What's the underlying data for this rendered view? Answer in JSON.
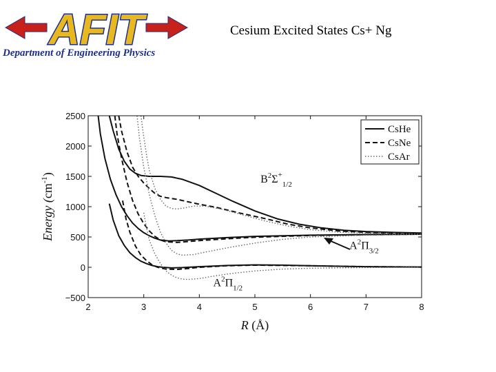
{
  "header": {
    "logo_text": "AFIT",
    "department": "Department of Engineering Physics",
    "title": "Cesium Excited States Cs+ Ng"
  },
  "colors": {
    "logo_fill": "#e8b820",
    "logo_outline": "#1d2f86",
    "logo_arrow": "#c8201a",
    "department_text": "#1d2f86"
  },
  "chart_data": {
    "type": "line",
    "title": "",
    "xlabel": "R (Å)",
    "ylabel": "Energy (cm-1)",
    "xlim": [
      2,
      8
    ],
    "ylim": [
      -500,
      2500
    ],
    "xticks": [
      "2",
      "3",
      "4",
      "5",
      "6",
      "7",
      "8"
    ],
    "yticks": [
      "−500",
      "0",
      "500",
      "1000",
      "1500",
      "2000",
      "2500"
    ],
    "grid": false,
    "legend_position": "top-right",
    "legend": [
      {
        "label": "CsHe",
        "style": "solid"
      },
      {
        "label": "CsNe",
        "style": "dashed"
      },
      {
        "label": "CsAr",
        "style": "dotted"
      }
    ],
    "annotations": [
      {
        "base": "B",
        "sup": "2",
        "sym": "Σ",
        "sup2": "+",
        "sub": "1/2",
        "at": [
          5.1,
          1400
        ]
      },
      {
        "base": "A",
        "sup": "2",
        "sym": "Π",
        "sup2": "",
        "sub": "3/2",
        "at": [
          6.7,
          300
        ]
      },
      {
        "base": "A",
        "sup": "2",
        "sym": "Π",
        "sup2": "",
        "sub": "1/2",
        "at": [
          4.25,
          -310
        ]
      }
    ],
    "series": [
      {
        "name": "CsHe",
        "state": "B2Σ+1/2",
        "style": "solid",
        "x": [
          2.38,
          2.45,
          2.55,
          2.65,
          2.75,
          2.85,
          2.95,
          3.1,
          3.3,
          3.5,
          3.7,
          4.0,
          4.3,
          4.6,
          5.0,
          5.4,
          5.8,
          6.2,
          6.6,
          7.0,
          7.5,
          8.0
        ],
        "y": [
          2500,
          2250,
          1950,
          1750,
          1620,
          1550,
          1515,
          1500,
          1500,
          1490,
          1450,
          1350,
          1220,
          1090,
          930,
          800,
          710,
          650,
          610,
          590,
          575,
          565
        ]
      },
      {
        "name": "CsHe",
        "state": "A2Π3/2",
        "style": "solid",
        "x": [
          2.18,
          2.22,
          2.3,
          2.4,
          2.5,
          2.6,
          2.7,
          2.8,
          2.9,
          3.0,
          3.1,
          3.2,
          3.3,
          3.45,
          3.6,
          3.8,
          4.0,
          4.5,
          5.0,
          5.5,
          6.0,
          7.0,
          8.0
        ],
        "y": [
          2500,
          2200,
          1800,
          1450,
          1200,
          1000,
          850,
          730,
          640,
          570,
          520,
          480,
          450,
          435,
          440,
          450,
          465,
          490,
          510,
          520,
          530,
          540,
          545
        ]
      },
      {
        "name": "CsHe",
        "state": "A2Π1/2",
        "style": "solid",
        "x": [
          2.38,
          2.45,
          2.55,
          2.65,
          2.75,
          2.85,
          2.95,
          3.05,
          3.15,
          3.25,
          3.35,
          3.5,
          3.7,
          4.0,
          4.5,
          5.0,
          5.5,
          6.0,
          7.0,
          8.0
        ],
        "y": [
          1050,
          780,
          520,
          360,
          240,
          160,
          100,
          60,
          30,
          10,
          0,
          -10,
          -5,
          10,
          30,
          40,
          35,
          25,
          10,
          5
        ]
      },
      {
        "name": "CsNe",
        "state": "B2Σ+1/2",
        "style": "dashed",
        "x": [
          2.55,
          2.6,
          2.7,
          2.8,
          2.9,
          3.0,
          3.1,
          3.2,
          3.3,
          3.4,
          3.6,
          3.8,
          4.0,
          4.3,
          4.7,
          5.2,
          5.6,
          6.0,
          6.5,
          7.0,
          7.5,
          8.0
        ],
        "y": [
          2500,
          2250,
          1900,
          1650,
          1500,
          1390,
          1300,
          1220,
          1170,
          1150,
          1120,
          1080,
          1040,
          990,
          900,
          800,
          710,
          650,
          600,
          575,
          565,
          560
        ]
      },
      {
        "name": "CsNe",
        "state": "A2Π3/2",
        "style": "dashed",
        "x": [
          2.48,
          2.52,
          2.6,
          2.7,
          2.8,
          2.9,
          3.0,
          3.1,
          3.2,
          3.3,
          3.4,
          3.6,
          3.8,
          4.0,
          4.5,
          5.0,
          6.0,
          7.0,
          8.0
        ],
        "y": [
          2500,
          2200,
          1800,
          1400,
          1100,
          880,
          720,
          600,
          510,
          450,
          420,
          410,
          425,
          440,
          470,
          495,
          525,
          540,
          545
        ]
      },
      {
        "name": "CsNe",
        "state": "A2Π1/2",
        "style": "dashed",
        "x": [
          2.62,
          2.68,
          2.75,
          2.85,
          2.95,
          3.05,
          3.15,
          3.25,
          3.4,
          3.6,
          3.8,
          4.0,
          4.5,
          5.0,
          6.0,
          7.0,
          8.0
        ],
        "y": [
          1100,
          800,
          580,
          350,
          200,
          110,
          40,
          0,
          -30,
          -35,
          -20,
          0,
          25,
          35,
          25,
          10,
          5
        ]
      },
      {
        "name": "CsAr",
        "state": "B2Σ+1/2",
        "style": "dotted",
        "x": [
          2.95,
          3.0,
          3.05,
          3.1,
          3.2,
          3.3,
          3.4,
          3.5,
          3.6,
          3.7,
          3.9,
          4.1,
          4.4,
          4.8,
          5.2,
          5.6,
          6.0,
          6.5,
          7.0,
          8.0
        ],
        "y": [
          2500,
          2150,
          1850,
          1600,
          1300,
          1120,
          1010,
          970,
          960,
          975,
          1010,
          1010,
          960,
          860,
          760,
          680,
          620,
          580,
          565,
          550
        ]
      },
      {
        "name": "CsAr",
        "state": "A2Π3/2",
        "style": "dotted",
        "x": [
          2.88,
          2.92,
          3.0,
          3.1,
          3.2,
          3.3,
          3.4,
          3.5,
          3.6,
          3.7,
          3.9,
          4.1,
          4.5,
          5.0,
          5.5,
          6.0,
          7.0,
          8.0
        ],
        "y": [
          2500,
          2150,
          1650,
          1200,
          850,
          580,
          400,
          280,
          220,
          200,
          210,
          250,
          320,
          400,
          460,
          500,
          530,
          545
        ]
      },
      {
        "name": "CsAr",
        "state": "A2Π1/2",
        "style": "dotted",
        "x": [
          3.0,
          3.05,
          3.1,
          3.2,
          3.3,
          3.4,
          3.5,
          3.6,
          3.7,
          3.8,
          4.0,
          4.3,
          4.6,
          5.0,
          5.5,
          6.0,
          7.0,
          8.0
        ],
        "y": [
          900,
          650,
          450,
          220,
          60,
          -60,
          -130,
          -175,
          -195,
          -200,
          -185,
          -140,
          -100,
          -60,
          -30,
          -15,
          -5,
          0
        ]
      }
    ]
  }
}
